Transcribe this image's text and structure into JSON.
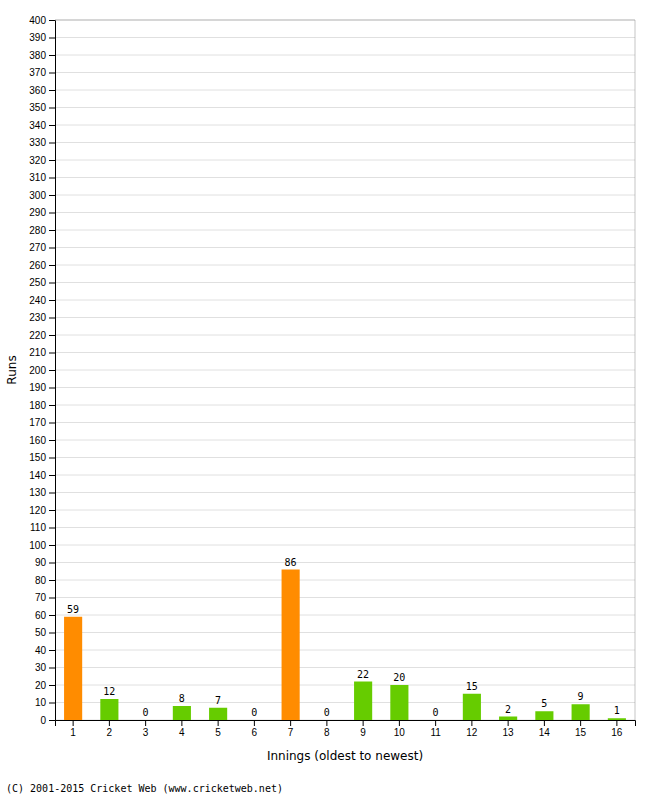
{
  "chart_data": {
    "type": "bar",
    "categories": [
      "1",
      "2",
      "3",
      "4",
      "5",
      "6",
      "7",
      "8",
      "9",
      "10",
      "11",
      "12",
      "13",
      "14",
      "15",
      "16"
    ],
    "values": [
      59,
      12,
      0,
      8,
      7,
      0,
      86,
      0,
      22,
      20,
      0,
      15,
      2,
      5,
      9,
      1
    ],
    "colors": [
      "#FF8C00",
      "#66CC00",
      "#66CC00",
      "#66CC00",
      "#66CC00",
      "#66CC00",
      "#FF8C00",
      "#66CC00",
      "#66CC00",
      "#66CC00",
      "#66CC00",
      "#66CC00",
      "#66CC00",
      "#66CC00",
      "#66CC00",
      "#66CC00"
    ],
    "x_label": "Innings (oldest to newest)",
    "y_label": "Runs",
    "footer": "(C) 2001-2015 Cricket Web (www.cricketweb.net)",
    "ylim": [
      0,
      400
    ],
    "yticks": [
      0,
      10,
      20,
      30,
      40,
      50,
      60,
      70,
      80,
      90,
      100,
      110,
      120,
      130,
      140,
      150,
      160,
      170,
      180,
      190,
      200,
      210,
      220,
      230,
      240,
      250,
      260,
      270,
      280,
      290,
      300,
      310,
      320,
      330,
      340,
      350,
      360,
      370,
      380,
      390,
      400
    ],
    "grid": true,
    "data_labels": true
  }
}
